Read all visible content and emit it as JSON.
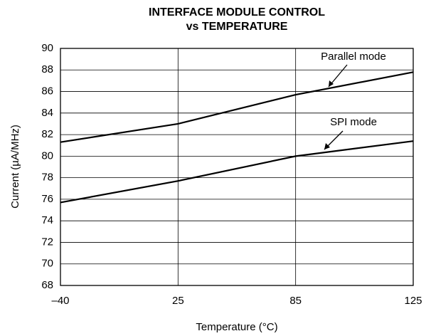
{
  "chart_data": {
    "type": "line",
    "title": [
      "INTERFACE MODULE CONTROL",
      "vs TEMPERATURE"
    ],
    "x_label": "Temperature (°C)",
    "y_label": "Current (µA/MHz)",
    "categories": [
      "–40",
      "25",
      "85",
      "125"
    ],
    "series": [
      {
        "name": "Parallel mode",
        "color": "#000000",
        "values": [
          81.3,
          83.0,
          85.7,
          87.8
        ]
      },
      {
        "name": "SPI mode",
        "color": "#000000",
        "values": [
          75.7,
          77.7,
          80.0,
          81.4
        ]
      }
    ],
    "ylim": [
      68,
      90
    ],
    "yticks": [
      68,
      70,
      72,
      74,
      76,
      78,
      80,
      82,
      84,
      86,
      88,
      90
    ],
    "grid": true
  }
}
